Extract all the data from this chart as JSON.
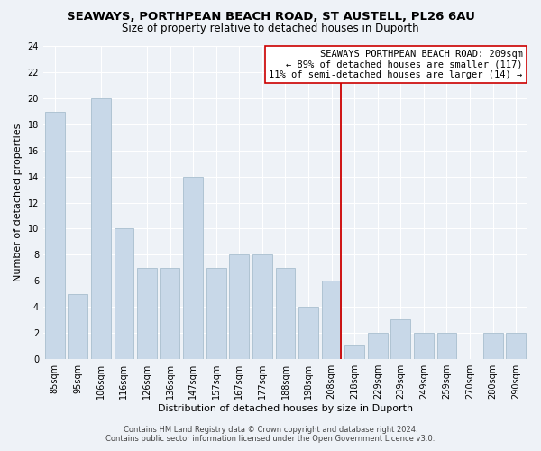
{
  "title": "SEAWAYS, PORTHPEAN BEACH ROAD, ST AUSTELL, PL26 6AU",
  "subtitle": "Size of property relative to detached houses in Duporth",
  "xlabel": "Distribution of detached houses by size in Duporth",
  "ylabel": "Number of detached properties",
  "bar_labels": [
    "85sqm",
    "95sqm",
    "106sqm",
    "116sqm",
    "126sqm",
    "136sqm",
    "147sqm",
    "157sqm",
    "167sqm",
    "177sqm",
    "188sqm",
    "198sqm",
    "208sqm",
    "218sqm",
    "229sqm",
    "239sqm",
    "249sqm",
    "259sqm",
    "270sqm",
    "280sqm",
    "290sqm"
  ],
  "bar_values": [
    19,
    5,
    20,
    10,
    7,
    7,
    14,
    7,
    8,
    8,
    7,
    4,
    6,
    1,
    2,
    3,
    2,
    2,
    0,
    2,
    2
  ],
  "bar_color": "#c8d8e8",
  "bar_edge_color": "#a8bece",
  "highlight_idx": 12,
  "highlight_color": "#cc0000",
  "ylim": [
    0,
    24
  ],
  "yticks": [
    0,
    2,
    4,
    6,
    8,
    10,
    12,
    14,
    16,
    18,
    20,
    22,
    24
  ],
  "annotation_title": "SEAWAYS PORTHPEAN BEACH ROAD: 209sqm",
  "annotation_line1": "← 89% of detached houses are smaller (117)",
  "annotation_line2": "11% of semi-detached houses are larger (14) →",
  "footer_line1": "Contains HM Land Registry data © Crown copyright and database right 2024.",
  "footer_line2": "Contains public sector information licensed under the Open Government Licence v3.0.",
  "bg_color": "#eef2f7",
  "grid_color": "#ffffff",
  "title_fontsize": 9.5,
  "subtitle_fontsize": 8.5,
  "axis_label_fontsize": 8,
  "tick_fontsize": 7,
  "annotation_fontsize": 7.5,
  "footer_fontsize": 6
}
